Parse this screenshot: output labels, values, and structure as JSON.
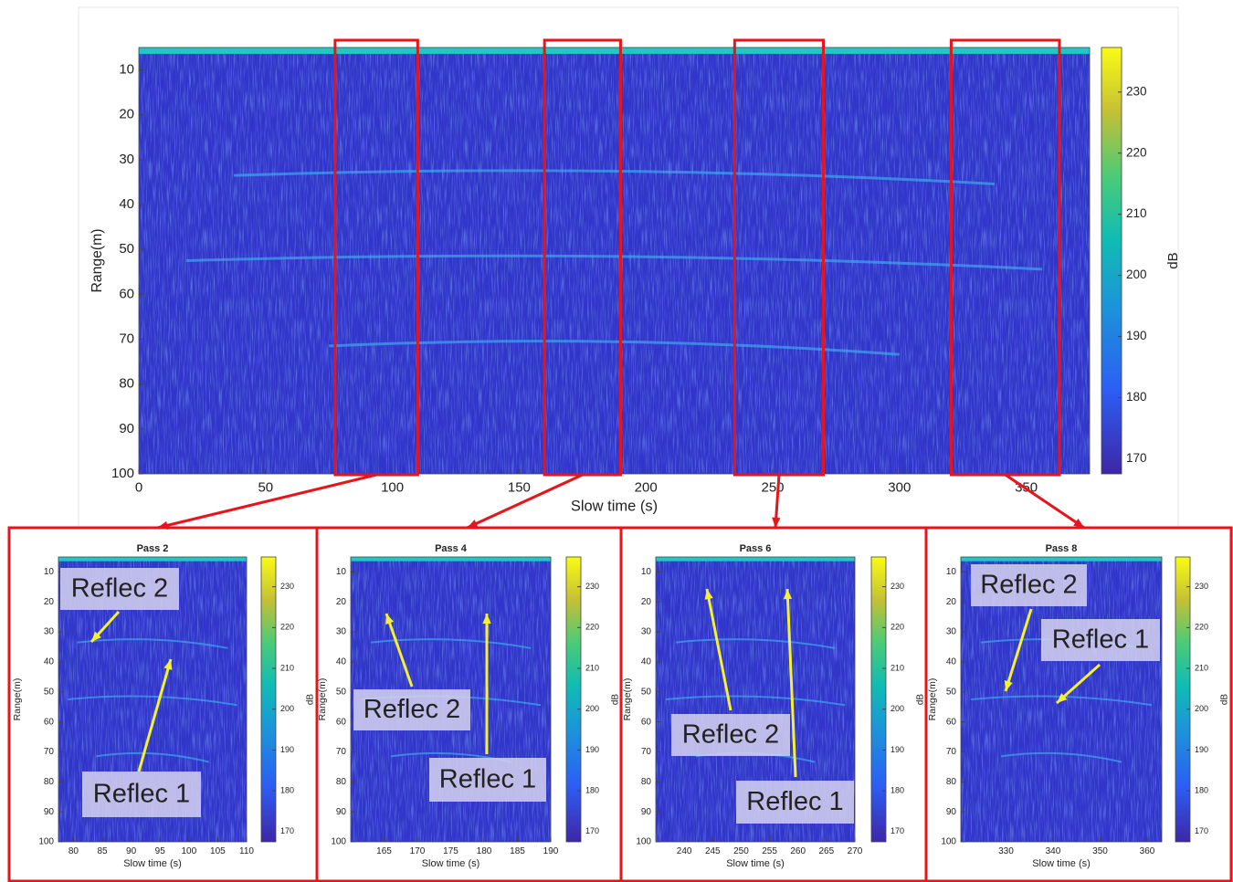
{
  "chart_data": [
    {
      "type": "heatmap",
      "xlabel": "Slow time (s)",
      "ylabel": "Range(m)",
      "colorbar_label": "dB",
      "xlim": [
        0,
        375
      ],
      "ylim": [
        5,
        100
      ],
      "y_reversed": true,
      "xticks": [
        0,
        50,
        100,
        150,
        200,
        250,
        300,
        350
      ],
      "yticks": [
        10,
        20,
        30,
        40,
        50,
        60,
        70,
        80,
        90,
        100
      ],
      "clim": [
        167.5,
        237.3
      ],
      "cticks": [
        170,
        180,
        190,
        200,
        210,
        220,
        230
      ]
    },
    {
      "type": "heatmap",
      "title": "Pass 2",
      "xlabel": "Slow time (s)",
      "ylabel": "Range(m)",
      "colorbar_label": "dB",
      "xlim": [
        77.4,
        110
      ],
      "ylim": [
        5,
        100
      ],
      "y_reversed": true,
      "xticks": [
        80,
        85,
        90,
        95,
        100,
        105,
        110
      ],
      "yticks": [
        10,
        20,
        30,
        40,
        50,
        60,
        70,
        80,
        90,
        100
      ],
      "clim": [
        167.5,
        237.3
      ],
      "cticks": [
        170,
        180,
        190,
        200,
        210,
        220,
        230
      ],
      "annotations": [
        "Reflec 2",
        "Reflec 1"
      ]
    },
    {
      "type": "heatmap",
      "title": "Pass 4",
      "xlabel": "Slow time (s)",
      "ylabel": "Range(m)",
      "colorbar_label": "dB",
      "xlim": [
        160,
        190
      ],
      "ylim": [
        5,
        100
      ],
      "y_reversed": true,
      "xticks": [
        165,
        170,
        175,
        180,
        185,
        190
      ],
      "yticks": [
        10,
        20,
        30,
        40,
        50,
        60,
        70,
        80,
        90,
        100
      ],
      "clim": [
        167.5,
        237.3
      ],
      "cticks": [
        170,
        180,
        190,
        200,
        210,
        220,
        230
      ],
      "annotations": [
        "Reflec 2",
        "Reflec 1"
      ]
    },
    {
      "type": "heatmap",
      "title": "Pass 6",
      "xlabel": "Slow time (s)",
      "ylabel": "Range(m)",
      "colorbar_label": "dB",
      "xlim": [
        235,
        270
      ],
      "ylim": [
        5,
        100
      ],
      "y_reversed": true,
      "xticks": [
        240,
        245,
        250,
        255,
        260,
        265,
        270
      ],
      "yticks": [
        10,
        20,
        30,
        40,
        50,
        60,
        70,
        80,
        90,
        100
      ],
      "clim": [
        167.5,
        237.3
      ],
      "cticks": [
        170,
        180,
        190,
        200,
        210,
        220,
        230
      ],
      "annotations": [
        "Reflec 2",
        "Reflec 1"
      ]
    },
    {
      "type": "heatmap",
      "title": "Pass 8",
      "xlabel": "Slow time (s)",
      "ylabel": "Range(m)",
      "colorbar_label": "dB",
      "xlim": [
        320.4,
        363.1
      ],
      "ylim": [
        5,
        100
      ],
      "y_reversed": true,
      "xticks": [
        330,
        340,
        350,
        360
      ],
      "yticks": [
        10,
        20,
        30,
        40,
        50,
        60,
        70,
        80,
        90,
        100
      ],
      "clim": [
        167.5,
        237.3
      ],
      "cticks": [
        170,
        180,
        190,
        200,
        210,
        220,
        230
      ],
      "annotations": [
        "Reflec 2",
        "Reflec 1"
      ]
    }
  ]
}
